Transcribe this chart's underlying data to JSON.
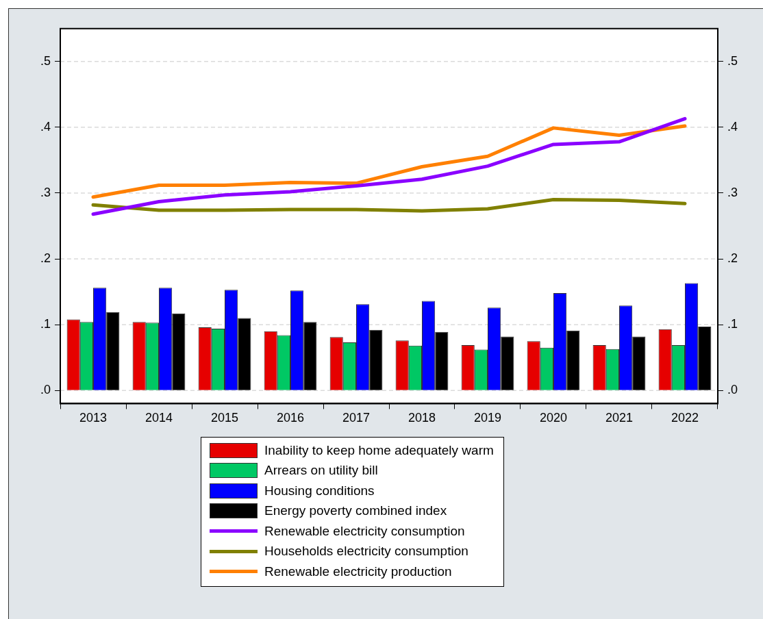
{
  "chart_data": {
    "type": "bar",
    "categories": [
      "2013",
      "2014",
      "2015",
      "2016",
      "2017",
      "2018",
      "2019",
      "2020",
      "2021",
      "2022"
    ],
    "series": [
      {
        "name": "Inability to keep home adequately warm",
        "color": "#e60000",
        "values": [
          0.108,
          0.104,
          0.096,
          0.09,
          0.081,
          0.076,
          0.069,
          0.075,
          0.069,
          0.093
        ]
      },
      {
        "name": "Arrears on utility bill",
        "color": "#00c864",
        "values": [
          0.104,
          0.103,
          0.094,
          0.084,
          0.073,
          0.068,
          0.062,
          0.065,
          0.063,
          0.069
        ]
      },
      {
        "name": "Housing conditions",
        "color": "#0000ff",
        "values": [
          0.156,
          0.156,
          0.153,
          0.152,
          0.131,
          0.136,
          0.126,
          0.148,
          0.129,
          0.163
        ]
      },
      {
        "name": "Energy poverty combined index",
        "color": "#000000",
        "values": [
          0.119,
          0.117,
          0.11,
          0.104,
          0.092,
          0.089,
          0.082,
          0.091,
          0.082,
          0.097
        ]
      },
      {
        "name": "Renewable electricity consumption",
        "type": "line",
        "color": "#8a00ff",
        "values": [
          0.268,
          0.287,
          0.297,
          0.302,
          0.311,
          0.321,
          0.341,
          0.374,
          0.378,
          0.413
        ]
      },
      {
        "name": "Households electricity consumption",
        "type": "line",
        "color": "#808000",
        "values": [
          0.282,
          0.274,
          0.274,
          0.275,
          0.275,
          0.273,
          0.276,
          0.29,
          0.289,
          0.284
        ]
      },
      {
        "name": "Renewable electricity production",
        "type": "line",
        "color": "#ff8000",
        "values": [
          0.294,
          0.312,
          0.312,
          0.316,
          0.315,
          0.34,
          0.356,
          0.399,
          0.388,
          0.402
        ]
      }
    ],
    "ylim": [
      -0.02,
      0.55
    ],
    "yticks": [
      {
        "value": 0,
        "label": ".0"
      },
      {
        "value": 0.1,
        "label": ".1"
      },
      {
        "value": 0.2,
        "label": ".2"
      },
      {
        "value": 0.3,
        "label": ".3"
      },
      {
        "value": 0.4,
        "label": ".4"
      },
      {
        "value": 0.5,
        "label": ".5"
      }
    ],
    "y2lim": [
      -0.02,
      0.55
    ],
    "y2ticks": [
      {
        "value": 0,
        "label": ".0"
      },
      {
        "value": 0.1,
        "label": ".1"
      },
      {
        "value": 0.2,
        "label": ".2"
      },
      {
        "value": 0.3,
        "label": ".3"
      },
      {
        "value": 0.4,
        "label": ".4"
      },
      {
        "value": 0.5,
        "label": ".5"
      }
    ],
    "grid": "y",
    "legend": "bottom",
    "marker": "none",
    "line_style": "solid"
  }
}
